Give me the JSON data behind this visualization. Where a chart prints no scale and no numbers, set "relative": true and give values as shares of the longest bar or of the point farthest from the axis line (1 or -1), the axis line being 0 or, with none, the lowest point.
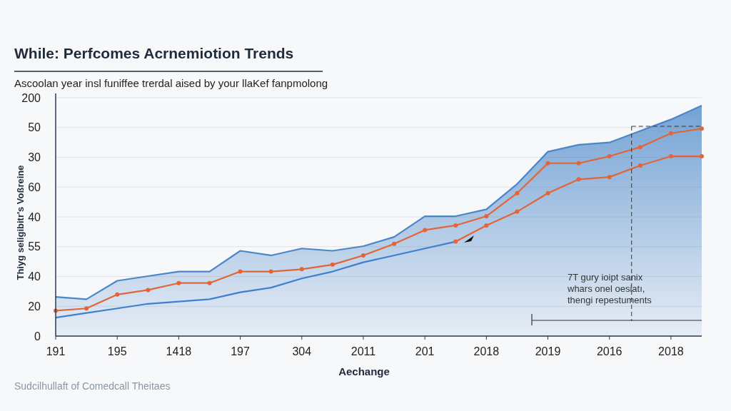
{
  "chart_data": {
    "type": "line",
    "relative": true,
    "title": "While: Perfcomes Acrnemiotion Trends",
    "subtitle": "Ascoolan year insl funiffee trerdal aised by your llaKef fanpmolong",
    "xlabel": "Aechange",
    "ylabel": "Thiyg seligibitr's Voßreine",
    "annotations": [
      "7T gury ioipt sanix whars onel oesiatı, thengi repestuments",
      "Sudcilhullaft of Comedcall Theitaes",
      "200",
      "50",
      "30",
      "60",
      "40",
      "55",
      "40",
      "20",
      "0"
    ],
    "categories": [
      "191",
      null,
      "195",
      null,
      "1418",
      null,
      "197",
      null,
      "304",
      null,
      "2011",
      null,
      "201",
      null,
      "2018",
      null,
      "2019",
      null,
      "2016",
      null,
      "2018",
      null
    ],
    "grid": "y",
    "series": [
      {
        "type": "area",
        "color": "#4a86c8",
        "values": [
          0.17,
          0.16,
          0.24,
          0.26,
          0.28,
          0.28,
          0.37,
          0.35,
          0.38,
          0.37,
          0.39,
          0.43,
          0.52,
          0.52,
          0.55,
          0.66,
          0.8,
          0.83,
          0.84,
          0.89,
          0.94,
          1
        ]
      },
      {
        "color": "#e0663a",
        "marker": "circle",
        "values": [
          0.11,
          0.12,
          0.18,
          0.2,
          0.23,
          0.23,
          0.28,
          0.28,
          0.29,
          0.31,
          0.35,
          0.4,
          0.46,
          0.48,
          0.52,
          0.62,
          0.75,
          0.75,
          0.78,
          0.82,
          0.88,
          0.9
        ]
      },
      {
        "color": "#3f7fcf",
        "values": [
          0.08,
          0.1,
          0.12,
          0.14,
          0.15,
          0.16,
          0.19,
          0.21,
          0.25,
          0.28,
          0.32,
          0.35,
          0.38,
          0.41,
          null,
          null,
          null,
          null,
          null,
          null,
          null,
          null
        ]
      },
      {
        "color": "#e0663a",
        "marker": "circle",
        "values": [
          null,
          null,
          null,
          null,
          null,
          null,
          null,
          null,
          null,
          null,
          null,
          null,
          null,
          0.41,
          0.48,
          0.54,
          0.62,
          0.68,
          0.69,
          0.74,
          0.78,
          0.78
        ]
      }
    ]
  }
}
